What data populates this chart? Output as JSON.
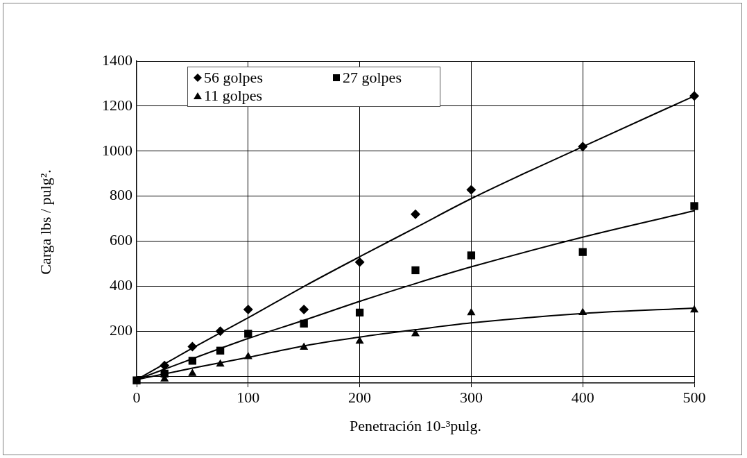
{
  "chart_data": {
    "type": "scatter",
    "xlabel": "Penetración 10-³pulg.",
    "ylabel": "Carga lbs / pulg².",
    "x": [
      0,
      25,
      50,
      75,
      100,
      150,
      200,
      250,
      300,
      400,
      500
    ],
    "series": [
      {
        "name": "56 golpes",
        "color": "#000000",
        "marker": "diamond",
        "values": [
          null,
          48,
          132,
          200,
          297,
          297,
          507,
          720,
          828,
          1020,
          1245
        ]
      },
      {
        "name": "27 golpes",
        "color": "#010101",
        "marker": "square",
        "values": [
          -18,
          12,
          69,
          114,
          189,
          234,
          283,
          471,
          537,
          552,
          756
        ]
      },
      {
        "name": "11 golpes",
        "color": "#020202",
        "marker": "triangle",
        "values": [
          null,
          -12,
          12,
          54,
          87,
          129,
          156,
          189,
          282,
          283,
          294
        ]
      },
      {
        "type": "line",
        "color": "#000000",
        "marker": "none",
        "x": [
          0,
          50,
          100,
          150,
          200,
          250,
          300,
          400,
          500
        ],
        "values": [
          -15,
          125,
          260,
          399,
          531,
          660,
          789,
          1020,
          1245
        ]
      },
      {
        "type": "line",
        "color": "#000000",
        "marker": "none",
        "x": [
          0,
          50,
          100,
          150,
          200,
          250,
          300,
          400,
          500
        ],
        "values": [
          -15,
          78,
          168,
          249,
          333,
          412,
          486,
          618,
          735
        ]
      },
      {
        "type": "line",
        "color": "#000000",
        "marker": "none",
        "x": [
          0,
          50,
          100,
          150,
          200,
          250,
          300,
          400,
          500
        ],
        "values": [
          -15,
          36,
          84,
          135,
          174,
          207,
          237,
          279,
          303
        ]
      }
    ],
    "xlim": [
      0,
      500
    ],
    "xticks": [
      0,
      100,
      200,
      300,
      400,
      500
    ],
    "ylim": [
      -30,
      1400
    ],
    "yticks": [
      {
        "value": 0,
        "label": null
      },
      200,
      400,
      600,
      800,
      1000,
      1200,
      1400
    ],
    "grid": true,
    "legend": "top left"
  }
}
